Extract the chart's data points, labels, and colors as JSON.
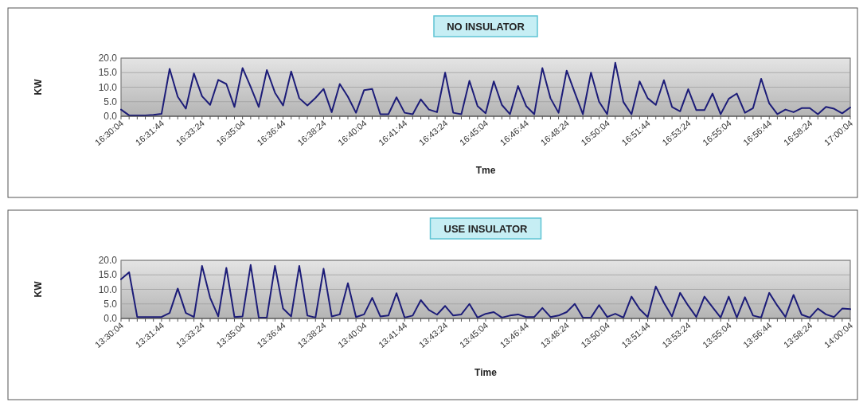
{
  "chart_data": [
    {
      "type": "line",
      "title": "NO INSULATOR",
      "xlabel": "Tme",
      "ylabel": "KW",
      "categories": [
        "16:30:04",
        null,
        null,
        null,
        null,
        "16:31:44",
        null,
        null,
        null,
        null,
        "16:33:24",
        null,
        null,
        null,
        null,
        "16:35:04",
        null,
        null,
        null,
        null,
        "16:36:44",
        null,
        null,
        null,
        null,
        "16:38:24",
        null,
        null,
        null,
        null,
        "16:40:04",
        null,
        null,
        null,
        null,
        "16:41:44",
        null,
        null,
        null,
        null,
        "16:43:24",
        null,
        null,
        null,
        null,
        "16:45:04",
        null,
        null,
        null,
        null,
        "16:46:44",
        null,
        null,
        null,
        null,
        "16:48:24",
        null,
        null,
        null,
        null,
        "16:50:04",
        null,
        null,
        null,
        null,
        "16:51:44",
        null,
        null,
        null,
        null,
        "16:53:24",
        null,
        null,
        null,
        null,
        "16:55:04",
        null,
        null,
        null,
        null,
        "16:56:44",
        null,
        null,
        null,
        null,
        "16:58:24",
        null,
        null,
        null,
        null,
        "17:00:04"
      ],
      "series": [
        {
          "color": "#1c1c78",
          "values": [
            2.3,
            0.3,
            0.3,
            0.3,
            0.5,
            0.8,
            16.3,
            6.7,
            2.6,
            14.7,
            6.9,
            3.9,
            12.5,
            11.1,
            3.2,
            16.6,
            10.1,
            3.2,
            15.9,
            8.1,
            3.7,
            15.4,
            6.2,
            3.7,
            6.3,
            9.4,
            1.4,
            11.1,
            6.7,
            1.2,
            9.0,
            9.4,
            0.7,
            0.7,
            6.5,
            1.2,
            0.7,
            5.8,
            2.3,
            1.4,
            15.0,
            1.2,
            0.7,
            12.2,
            3.5,
            1.0,
            12.0,
            3.9,
            0.7,
            10.4,
            3.5,
            0.7,
            16.6,
            6.2,
            1.2,
            15.7,
            8.1,
            0.7,
            15.0,
            5.0,
            0.7,
            18.4,
            4.9,
            0.7,
            12.0,
            6.2,
            3.9,
            12.4,
            3.2,
            1.7,
            9.3,
            2.1,
            2.1,
            7.8,
            0.7,
            6.0,
            7.8,
            1.2,
            2.8,
            12.9,
            4.4,
            0.7,
            2.3,
            1.4,
            2.8,
            2.8,
            0.7,
            3.2,
            2.6,
            1.0,
            3.0
          ]
        }
      ],
      "ylim": [
        0,
        20
      ],
      "yticks": [
        {
          "value": 0,
          "label": "0.0"
        },
        {
          "value": 5,
          "label": "5.0"
        },
        {
          "value": 10,
          "label": "10.0"
        },
        {
          "value": 15,
          "label": "15.0"
        },
        {
          "value": 20,
          "label": "20.0"
        }
      ],
      "grid": "y",
      "marker": "none",
      "line_style": "solid"
    },
    {
      "type": "line",
      "title": "USE INSULATOR",
      "xlabel": "Time",
      "ylabel": "KW",
      "categories": [
        "13:30:04",
        null,
        null,
        null,
        null,
        "13:31:44",
        null,
        null,
        null,
        null,
        "13:33:24",
        null,
        null,
        null,
        null,
        "13:35:04",
        null,
        null,
        null,
        null,
        "13:36:44",
        null,
        null,
        null,
        null,
        "13:38:24",
        null,
        null,
        null,
        null,
        "13:40:04",
        null,
        null,
        null,
        null,
        "13:41:44",
        null,
        null,
        null,
        null,
        "13:43:24",
        null,
        null,
        null,
        null,
        "13:45:04",
        null,
        null,
        null,
        null,
        "13:46:44",
        null,
        null,
        null,
        null,
        "13:48:24",
        null,
        null,
        null,
        null,
        "13:50:04",
        null,
        null,
        null,
        null,
        "13:51:44",
        null,
        null,
        null,
        null,
        "13:53:24",
        null,
        null,
        null,
        null,
        "13:55:04",
        null,
        null,
        null,
        null,
        "13:56:44",
        null,
        null,
        null,
        null,
        "13:58:24",
        null,
        null,
        null,
        null,
        "14:00:04"
      ],
      "series": [
        {
          "color": "#1c1c78",
          "values": [
            13.5,
            15.9,
            0.5,
            0.5,
            0.5,
            0.5,
            1.9,
            10.3,
            1.9,
            0.5,
            18.1,
            7.1,
            0.7,
            17.4,
            0.5,
            0.7,
            18.4,
            0.3,
            0.3,
            18.1,
            3.4,
            0.7,
            18.1,
            1.0,
            0.3,
            17.1,
            0.7,
            1.4,
            12.1,
            0.5,
            1.4,
            7.1,
            0.7,
            1.0,
            8.7,
            0.3,
            1.0,
            6.3,
            2.9,
            1.3,
            4.3,
            1.0,
            1.4,
            5.0,
            0.3,
            1.6,
            2.2,
            0.3,
            1.0,
            1.4,
            0.5,
            0.5,
            3.6,
            0.5,
            1.0,
            2.2,
            5.0,
            0.3,
            0.3,
            4.6,
            0.5,
            1.6,
            0.3,
            7.5,
            3.2,
            0.5,
            11.0,
            5.4,
            0.7,
            8.8,
            4.4,
            0.5,
            7.5,
            3.9,
            0.3,
            7.5,
            0.3,
            7.3,
            1.0,
            0.3,
            8.8,
            4.4,
            0.5,
            8.1,
            1.3,
            0.3,
            3.4,
            1.4,
            0.5,
            3.4,
            3.2
          ]
        }
      ],
      "ylim": [
        0,
        20
      ],
      "yticks": [
        {
          "value": 0,
          "label": "0.0"
        },
        {
          "value": 5,
          "label": "5.0"
        },
        {
          "value": 10,
          "label": "10.0"
        },
        {
          "value": 15,
          "label": "15.0"
        },
        {
          "value": 20,
          "label": "20.0"
        }
      ],
      "grid": "y",
      "marker": "none",
      "line_style": "solid"
    }
  ]
}
